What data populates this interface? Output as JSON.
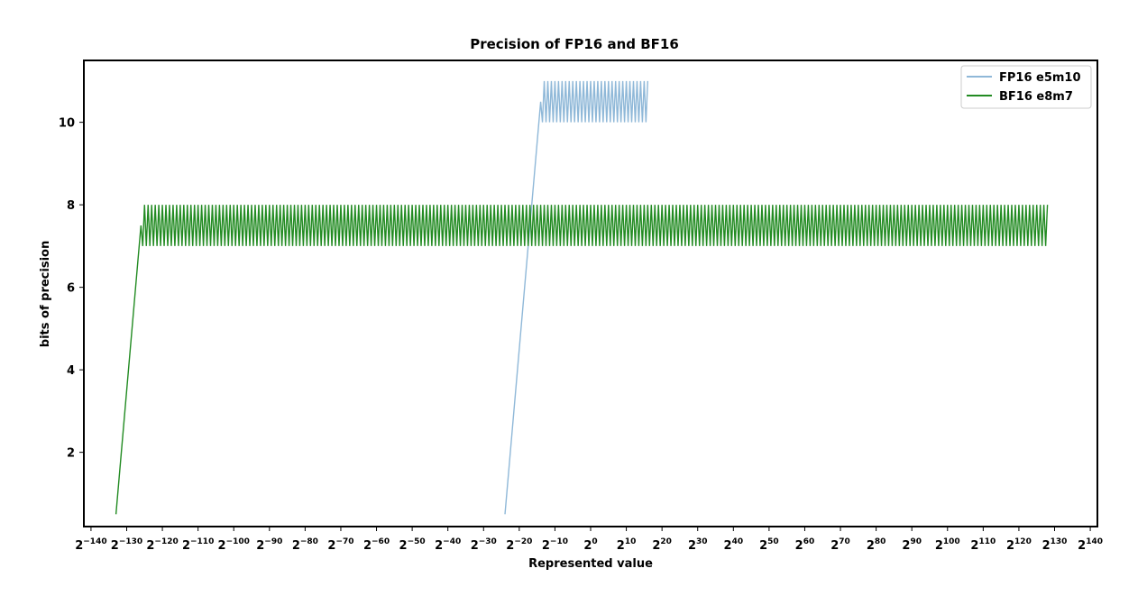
{
  "chart_data": {
    "type": "line",
    "title": "Precision of FP16 and BF16",
    "xlabel": "Represented value",
    "ylabel": "bits of precision",
    "x_scale": "log2",
    "x_tick_base": "2",
    "x_tick_exponents": [
      -140,
      -130,
      -120,
      -110,
      -100,
      -90,
      -80,
      -70,
      -60,
      -50,
      -40,
      -30,
      -20,
      -10,
      0,
      10,
      20,
      30,
      40,
      50,
      60,
      70,
      80,
      90,
      100,
      110,
      120,
      130,
      140
    ],
    "xlim": [
      -142,
      142
    ],
    "ylim": [
      0.2,
      11.5
    ],
    "y_ticks": [
      "2",
      "4",
      "6",
      "8",
      "10"
    ],
    "legend_position": "top-right",
    "grid": false,
    "series": [
      {
        "name": "FP16 e5m10",
        "color": "#8fb8d8",
        "shape": "ramp from x=2^-24 (y=0.5) to x=2^-14 (y=10.5), then oscillating between 10 and 11 up to x=2^16",
        "ramp": [
          [
            -24,
            0.5
          ],
          [
            -14,
            10.5
          ]
        ],
        "band": {
          "x_start": -14,
          "x_end": 16,
          "low": 10,
          "high": 11
        }
      },
      {
        "name": "BF16 e8m7",
        "color": "#228b22",
        "shape": "ramp from x=2^-133 (y=0.5) to x=2^-126 (y=7.5), then oscillating between 7 and 8 up to x=2^128",
        "ramp": [
          [
            -133,
            0.5
          ],
          [
            -126,
            7.5
          ]
        ],
        "band": {
          "x_start": -126,
          "x_end": 128,
          "low": 7,
          "high": 8
        }
      }
    ]
  }
}
